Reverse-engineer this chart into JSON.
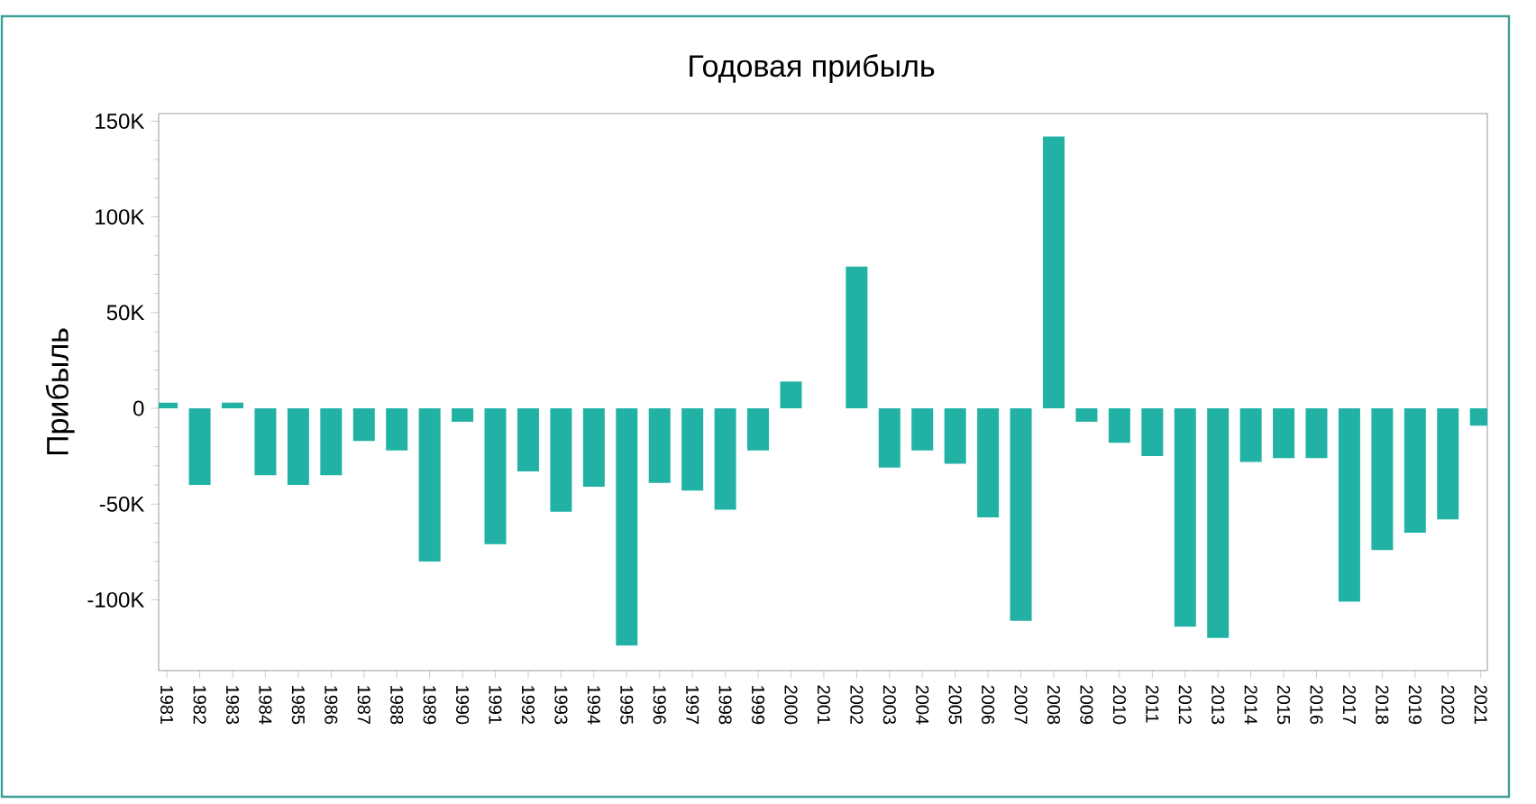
{
  "chart_data": {
    "type": "bar",
    "title": "Годовая прибыль",
    "ylabel": "Прибыль",
    "categories": [
      "1981",
      "1982",
      "1983",
      "1984",
      "1985",
      "1986",
      "1987",
      "1988",
      "1989",
      "1990",
      "1991",
      "1992",
      "1993",
      "1994",
      "1995",
      "1996",
      "1997",
      "1998",
      "1999",
      "2000",
      "2001",
      "2002",
      "2003",
      "2004",
      "2005",
      "2006",
      "2007",
      "2008",
      "2009",
      "2010",
      "2011",
      "2012",
      "2013",
      "2014",
      "2015",
      "2016",
      "2017",
      "2018",
      "2019",
      "2020",
      "2021"
    ],
    "values": [
      3000,
      -40000,
      3000,
      -35000,
      -40000,
      -35000,
      -17000,
      -22000,
      -80000,
      -7000,
      -71000,
      -33000,
      -54000,
      -41000,
      -124000,
      -39000,
      -43000,
      -53000,
      -22000,
      14000,
      0,
      74000,
      -31000,
      -22000,
      -29000,
      -57000,
      -111000,
      142000,
      -7000,
      -18000,
      -25000,
      -114000,
      -120000,
      -28000,
      -26000,
      -26000,
      -101000,
      -74000,
      -65000,
      -58000,
      -9000
    ],
    "color": "#22b2a5",
    "ylim": [
      -137000,
      154000
    ],
    "yticks": [
      {
        "value": -100000,
        "label": "-100K"
      },
      {
        "value": -50000,
        "label": "-50K"
      },
      {
        "value": 0,
        "label": "0"
      },
      {
        "value": 50000,
        "label": "50K"
      },
      {
        "value": 100000,
        "label": "100K"
      },
      {
        "value": 150000,
        "label": "150K"
      }
    ],
    "grid": false
  }
}
